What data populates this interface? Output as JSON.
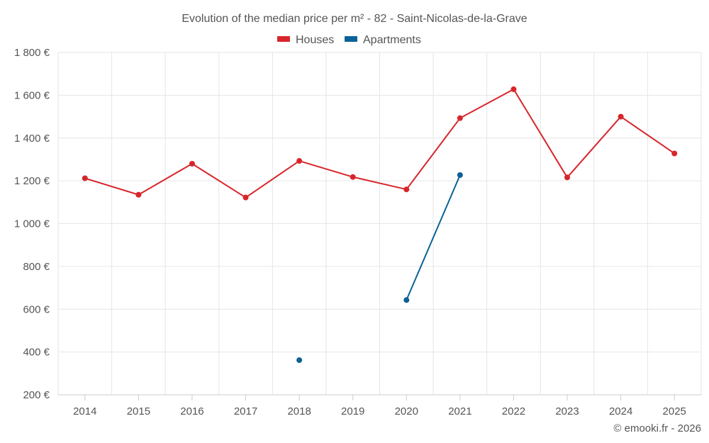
{
  "chart_data": {
    "type": "line",
    "title": "Evolution of the median price per m² - 82 - Saint-Nicolas-de-la-Grave",
    "categories": [
      "2014",
      "2015",
      "2016",
      "2017",
      "2018",
      "2019",
      "2020",
      "2021",
      "2022",
      "2023",
      "2024",
      "2025"
    ],
    "y_ticks": [
      200,
      400,
      600,
      800,
      1000,
      1200,
      1400,
      1600,
      1800
    ],
    "y_tick_labels": [
      "200 €",
      "400 €",
      "600 €",
      "800 €",
      "1 000 €",
      "1 200 €",
      "1 400 €",
      "1 600 €",
      "1 800 €"
    ],
    "ylim": [
      200,
      1800
    ],
    "xlabel": "",
    "ylabel": "",
    "legend_position": "top-center",
    "grid": true,
    "series": [
      {
        "name": "Houses",
        "color": "#d7262b",
        "values": [
          1212,
          1135,
          1280,
          1122,
          1293,
          1218,
          1160,
          1493,
          1628,
          1216,
          1500,
          1328
        ]
      },
      {
        "name": "Apartments",
        "color": "#0b6296",
        "values": [
          null,
          null,
          null,
          null,
          362,
          null,
          643,
          1227,
          null,
          null,
          null,
          null
        ]
      }
    ],
    "credit": "© emooki.fr - 2026"
  }
}
